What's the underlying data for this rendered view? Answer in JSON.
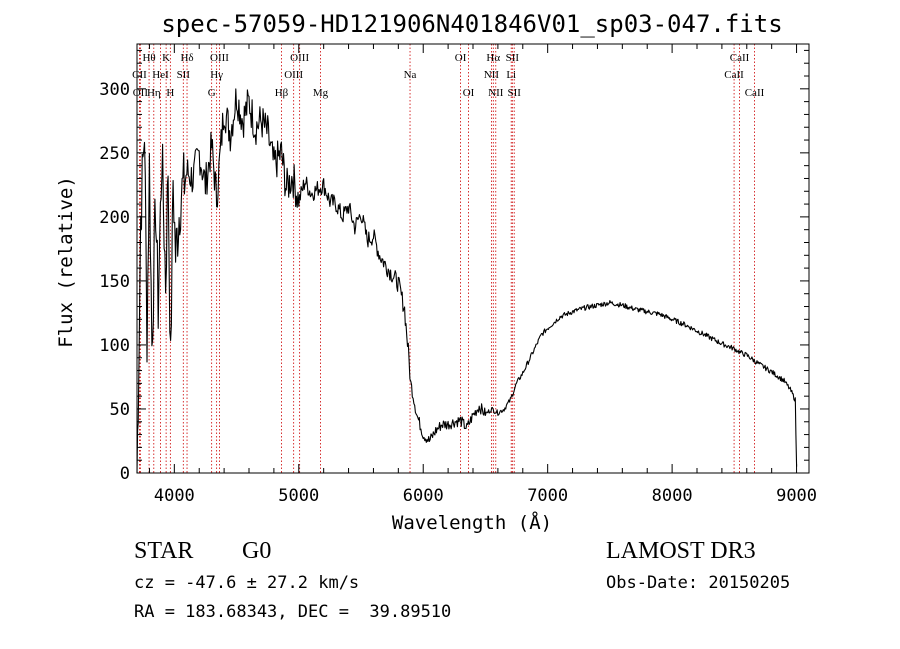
{
  "chart_data": {
    "type": "line",
    "title": "spec-57059-HD121906N401846V01_sp03-047.fits",
    "xlabel": "Wavelength (Å)",
    "ylabel": "Flux (relative)",
    "xlim": [
      3700,
      9100
    ],
    "ylim": [
      0,
      335
    ],
    "x_ticks": [
      4000,
      5000,
      6000,
      7000,
      8000,
      9000
    ],
    "y_ticks": [
      0,
      50,
      100,
      150,
      200,
      250,
      300
    ],
    "grid": false,
    "line_color": "#000000",
    "marker_color": "#cc0000",
    "series": [
      {
        "name": "flux",
        "x": [
          3700,
          3710,
          3730,
          3760,
          3780,
          3800,
          3820,
          3850,
          3870,
          3900,
          3930,
          3950,
          3970,
          3990,
          4010,
          4050,
          4100,
          4150,
          4200,
          4250,
          4300,
          4340,
          4400,
          4450,
          4500,
          4550,
          4600,
          4650,
          4700,
          4750,
          4800,
          4860,
          4900,
          4950,
          5000,
          5050,
          5100,
          5150,
          5200,
          5250,
          5300,
          5350,
          5400,
          5450,
          5500,
          5550,
          5600,
          5650,
          5700,
          5750,
          5800,
          5850,
          5880,
          5900,
          5950,
          6000,
          6050,
          6100,
          6150,
          6200,
          6250,
          6300,
          6350,
          6400,
          6450,
          6500,
          6550,
          6600,
          6650,
          6700,
          6750,
          6800,
          6850,
          6900,
          6950,
          7000,
          7100,
          7200,
          7300,
          7400,
          7500,
          7600,
          7700,
          7800,
          7900,
          8000,
          8100,
          8200,
          8300,
          8400,
          8500,
          8550,
          8600,
          8700,
          8800,
          8900,
          8950,
          8990,
          9000
        ],
        "y": [
          0,
          60,
          200,
          270,
          110,
          240,
          100,
          210,
          130,
          250,
          150,
          240,
          80,
          230,
          170,
          215,
          235,
          230,
          250,
          225,
          255,
          215,
          285,
          265,
          295,
          275,
          290,
          270,
          275,
          265,
          240,
          250,
          222,
          232,
          212,
          228,
          218,
          222,
          225,
          212,
          210,
          200,
          208,
          192,
          203,
          182,
          185,
          170,
          162,
          155,
          148,
          128,
          95,
          70,
          45,
          30,
          25,
          33,
          38,
          38,
          40,
          41,
          35,
          45,
          52,
          46,
          50,
          47,
          50,
          57,
          70,
          78,
          88,
          98,
          108,
          113,
          122,
          126,
          129,
          131,
          133,
          131,
          128,
          126,
          124,
          120,
          116,
          111,
          106,
          101,
          97,
          94,
          92,
          85,
          79,
          72,
          65,
          57,
          5
        ]
      }
    ],
    "line_markers": [
      {
        "label": "CII",
        "x": 3720,
        "row": 2
      },
      {
        "label": "OII",
        "x": 3727,
        "row": 3
      },
      {
        "label": "Hθ",
        "x": 3797,
        "row": 1
      },
      {
        "label": "Hη",
        "x": 3835,
        "row": 3
      },
      {
        "label": "HeI",
        "x": 3889,
        "row": 2
      },
      {
        "label": "K",
        "x": 3934,
        "row": 1
      },
      {
        "label": "H",
        "x": 3968,
        "row": 3
      },
      {
        "label": "SII",
        "x": 4072,
        "row": 2
      },
      {
        "label": "Hδ",
        "x": 4102,
        "row": 1
      },
      {
        "label": "G",
        "x": 4300,
        "row": 3
      },
      {
        "label": "Hγ",
        "x": 4340,
        "row": 2
      },
      {
        "label": "OIII",
        "x": 4363,
        "row": 1
      },
      {
        "label": "Hβ",
        "x": 4861,
        "row": 3
      },
      {
        "label": "OIII",
        "x": 4959,
        "row": 2
      },
      {
        "label": "OIII",
        "x": 5007,
        "row": 1
      },
      {
        "label": "Mg",
        "x": 5175,
        "row": 3
      },
      {
        "label": "Na",
        "x": 5894,
        "row": 2
      },
      {
        "label": "OI",
        "x": 6300,
        "row": 1
      },
      {
        "label": "OI",
        "x": 6364,
        "row": 3
      },
      {
        "label": "NII",
        "x": 6548,
        "row": 2
      },
      {
        "label": "Hα",
        "x": 6563,
        "row": 1
      },
      {
        "label": "NII",
        "x": 6583,
        "row": 3
      },
      {
        "label": "Li",
        "x": 6707,
        "row": 2
      },
      {
        "label": "SII",
        "x": 6716,
        "row": 1
      },
      {
        "label": "SII",
        "x": 6731,
        "row": 3
      },
      {
        "label": "CaII",
        "x": 8498,
        "row": 2
      },
      {
        "label": "CaII",
        "x": 8542,
        "row": 1
      },
      {
        "label": "CaII",
        "x": 8662,
        "row": 3
      }
    ]
  },
  "info": {
    "class": "STAR",
    "subclass": "G0",
    "survey": "LAMOST DR3",
    "redshift": "cz = -47.6 ± 27.2 km/s",
    "obs_date": "Obs-Date: 20150205",
    "coords": "RA = 183.68343, DEC =  39.89510"
  }
}
